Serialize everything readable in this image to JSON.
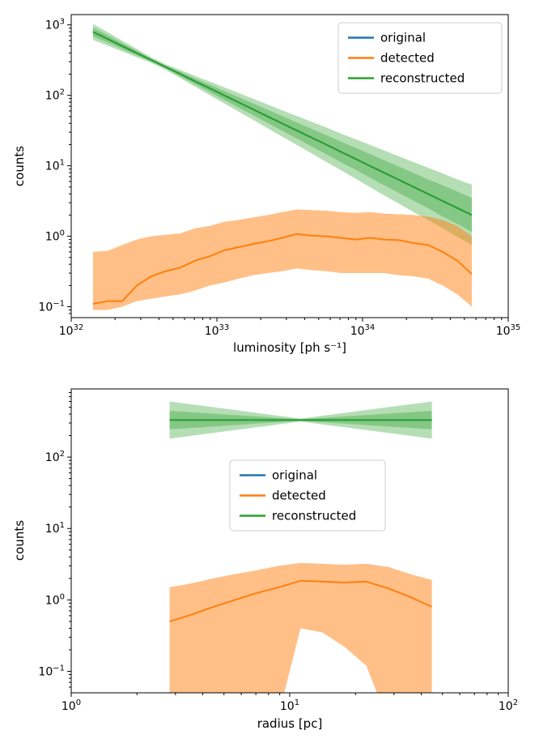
{
  "page": {
    "background": "#ffffff"
  },
  "series_colors": {
    "original": "#1f77b4",
    "detected": "#ff7f0e",
    "reconstructed": "#2ca02c"
  },
  "chart_data": [
    {
      "type": "line",
      "title": "",
      "xlabel": "luminosity [ph s⁻¹]",
      "ylabel": "counts",
      "xscale": "log",
      "yscale": "log",
      "xlim": [
        1e+32,
        1e+35
      ],
      "ylim": [
        0.07,
        1400
      ],
      "x_tick_exponents": [
        32,
        33,
        34,
        35
      ],
      "y_tick_exponents": [
        -1,
        0,
        1,
        2,
        3
      ],
      "legend": {
        "loc": "upper right",
        "entries": [
          "original",
          "detected",
          "reconstructed"
        ]
      },
      "x": [
        1.41e+32,
        1.78e+32,
        2.24e+32,
        2.82e+32,
        3.55e+32,
        4.47e+32,
        5.62e+32,
        7.08e+32,
        8.91e+32,
        1.12e+33,
        1.41e+33,
        1.78e+33,
        2.24e+33,
        2.82e+33,
        3.55e+33,
        4.47e+33,
        5.62e+33,
        7.08e+33,
        8.91e+33,
        1.12e+34,
        1.41e+34,
        1.78e+34,
        2.24e+34,
        2.82e+34,
        3.55e+34,
        4.47e+34,
        5.62e+34
      ],
      "series": [
        {
          "name": "original",
          "color_key": "original",
          "y": [
            794,
            631,
            501,
            398,
            316,
            251,
            200,
            158,
            126,
            100,
            79.4,
            63.1,
            50.1,
            39.8,
            31.6,
            25.1,
            20,
            15.8,
            12.6,
            10,
            7.94,
            6.31,
            5.01,
            3.98,
            3.16,
            2.51,
            2
          ]
        },
        {
          "name": "detected",
          "color_key": "detected",
          "y": [
            0.11,
            0.12,
            0.12,
            0.2,
            0.27,
            0.32,
            0.36,
            0.45,
            0.52,
            0.63,
            0.7,
            0.78,
            0.85,
            0.95,
            1.08,
            1.02,
            1.0,
            0.95,
            0.9,
            0.95,
            0.9,
            0.88,
            0.8,
            0.75,
            0.6,
            0.45,
            0.29
          ]
        },
        {
          "name": "reconstructed",
          "color_key": "reconstructed",
          "y": [
            794,
            631,
            501,
            398,
            316,
            251,
            200,
            158,
            126,
            100,
            79.4,
            63.1,
            50.1,
            39.8,
            31.6,
            25.1,
            20,
            15.8,
            12.6,
            10,
            7.94,
            6.31,
            5.01,
            3.98,
            3.16,
            2.51,
            2
          ]
        }
      ],
      "bands": [
        {
          "name": "reconstructed-band-outer",
          "color_key": "reconstructed",
          "opacity": 0.35,
          "lo": [
            612,
            507,
            421,
            348,
            289,
            229,
            175,
            133,
            101,
            77,
            58.6,
            44.7,
            33.9,
            25.9,
            19.7,
            15,
            11.4,
            8.7,
            6.6,
            5,
            3.8,
            2.9,
            2.2,
            1.7,
            1.3,
            0.98,
            0.75
          ],
          "hi": [
            1030,
            786,
            597,
            455,
            346,
            275,
            229,
            188,
            157,
            130,
            108,
            89.2,
            74,
            61.2,
            50.8,
            42,
            35,
            28.8,
            24,
            19.9,
            16.5,
            13.6,
            11.3,
            9.4,
            7.8,
            6.4,
            5.4
          ]
        },
        {
          "name": "reconstructed-band-inner",
          "color_key": "reconstructed",
          "opacity": 0.35,
          "lo": [
            688,
            560,
            456,
            371,
            302,
            240,
            186,
            144,
            112,
            86.6,
            67.1,
            52.1,
            40.3,
            31.3,
            24.3,
            18.8,
            14.6,
            11.3,
            8.8,
            6.8,
            5.3,
            4.1,
            3.2,
            2.5,
            1.9,
            1.5,
            1.15
          ],
          "hi": [
            916,
            711,
            551,
            427,
            331,
            263,
            215,
            174,
            142,
            115,
            93.9,
            76.4,
            62.2,
            50.6,
            41.2,
            33.5,
            27.4,
            22.1,
            18.1,
            14.7,
            12,
            9.7,
            7.9,
            6.4,
            5.3,
            4.3,
            3.5
          ]
        },
        {
          "name": "detected-band",
          "color_key": "detected",
          "opacity": 0.5,
          "lo": [
            0.09,
            0.09,
            0.1,
            0.12,
            0.13,
            0.14,
            0.15,
            0.17,
            0.2,
            0.22,
            0.25,
            0.28,
            0.3,
            0.32,
            0.35,
            0.33,
            0.32,
            0.3,
            0.3,
            0.3,
            0.3,
            0.28,
            0.27,
            0.25,
            0.2,
            0.15,
            0.1
          ],
          "hi": [
            0.6,
            0.62,
            0.75,
            0.9,
            1.0,
            1.05,
            1.1,
            1.3,
            1.4,
            1.6,
            1.7,
            1.85,
            2.0,
            2.2,
            2.4,
            2.35,
            2.3,
            2.2,
            2.15,
            2.2,
            2.1,
            2.05,
            2.0,
            1.9,
            1.7,
            1.4,
            1.0
          ]
        }
      ]
    },
    {
      "type": "line",
      "title": "",
      "xlabel": "radius [pc]",
      "ylabel": "counts",
      "xscale": "log",
      "yscale": "log",
      "xlim": [
        1,
        100
      ],
      "ylim": [
        0.05,
        900
      ],
      "x_tick_exponents": [
        0,
        1,
        2
      ],
      "y_tick_exponents": [
        -1,
        0,
        1,
        2
      ],
      "legend": {
        "loc": "upper center",
        "entries": [
          "original",
          "detected",
          "reconstructed"
        ]
      },
      "x": [
        2.82,
        3.55,
        4.47,
        5.62,
        7.08,
        8.91,
        11.2,
        14.1,
        17.8,
        22.4,
        28.2,
        35.5,
        44.7
      ],
      "series": [
        {
          "name": "original",
          "color_key": "original",
          "y": [
            330,
            330,
            330,
            330,
            330,
            330,
            330,
            330,
            330,
            330,
            330,
            330,
            330
          ]
        },
        {
          "name": "detected",
          "color_key": "detected",
          "y": [
            0.5,
            0.62,
            0.8,
            1.0,
            1.25,
            1.5,
            1.85,
            1.8,
            1.75,
            1.8,
            1.45,
            1.1,
            0.8
          ]
        },
        {
          "name": "reconstructed",
          "color_key": "reconstructed",
          "y": [
            330,
            330,
            330,
            330,
            330,
            330,
            330,
            330,
            330,
            330,
            330,
            330,
            330
          ]
        }
      ],
      "bands": [
        {
          "name": "reconstructed-band-outer",
          "color_key": "reconstructed",
          "opacity": 0.35,
          "lo": [
            181,
            199,
            218,
            239,
            262,
            287,
            315,
            287,
            262,
            239,
            218,
            199,
            181
          ],
          "hi": [
            600,
            548,
            500,
            456,
            415,
            379,
            346,
            379,
            415,
            456,
            500,
            548,
            600
          ]
        },
        {
          "name": "reconstructed-band-inner",
          "color_key": "reconstructed",
          "opacity": 0.35,
          "lo": [
            245,
            256,
            268,
            281,
            294,
            308,
            323,
            308,
            294,
            281,
            268,
            256,
            245
          ],
          "hi": [
            445,
            425,
            406,
            388,
            370,
            354,
            338,
            354,
            370,
            388,
            406,
            425,
            445
          ]
        },
        {
          "name": "detected-band",
          "color_key": "detected",
          "opacity": 0.5,
          "lo": [
            0.02,
            0.02,
            0.02,
            0.02,
            0.02,
            0.025,
            0.4,
            0.35,
            0.22,
            0.12,
            0.02,
            0.02,
            0.02
          ],
          "hi": [
            1.5,
            1.7,
            2.0,
            2.3,
            2.6,
            3.0,
            3.3,
            3.2,
            3.1,
            3.2,
            2.9,
            2.3,
            1.9
          ]
        }
      ]
    }
  ]
}
